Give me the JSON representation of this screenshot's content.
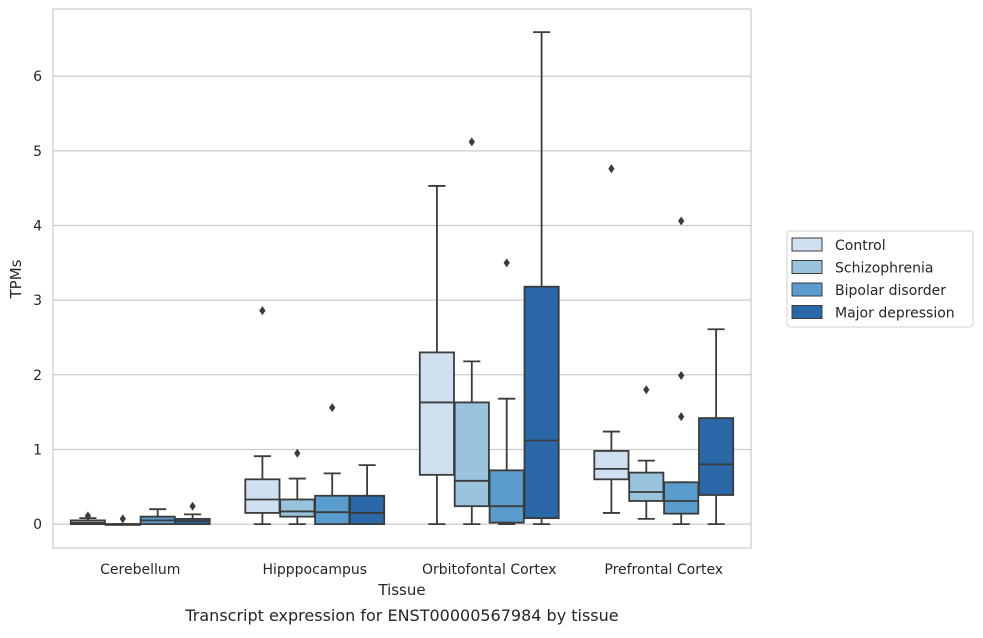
{
  "chart_data": {
    "type": "box",
    "title": "",
    "caption": "Transcript expression for ENST00000567984 by tissue",
    "xlabel": "Tissue",
    "ylabel": "TPMs",
    "ylim": [
      -0.32,
      6.9
    ],
    "yticks": [
      0,
      1,
      2,
      3,
      4,
      5,
      6
    ],
    "grid": "horizontal",
    "legend_position": "right",
    "categories": [
      "Cerebellum",
      "Hipppocampus",
      "Orbitofontal Cortex",
      "Prefrontal Cortex"
    ],
    "series": [
      {
        "name": "Control",
        "color": "#cfe0f0",
        "boxes": [
          {
            "whisker_low": 0.0,
            "q1": 0.0,
            "median": 0.02,
            "q3": 0.05,
            "whisker_high": 0.08,
            "outliers": [
              0.11
            ]
          },
          {
            "whisker_low": 0.0,
            "q1": 0.15,
            "median": 0.33,
            "q3": 0.6,
            "whisker_high": 0.91,
            "outliers": [
              2.86
            ]
          },
          {
            "whisker_low": 0.0,
            "q1": 0.66,
            "median": 1.63,
            "q3": 2.3,
            "whisker_high": 4.53,
            "outliers": []
          },
          {
            "whisker_low": 0.15,
            "q1": 0.6,
            "median": 0.74,
            "q3": 0.98,
            "whisker_high": 1.24,
            "outliers": [
              4.76
            ]
          }
        ]
      },
      {
        "name": "Schizophrenia",
        "color": "#9ac3de",
        "boxes": [
          {
            "whisker_low": 0.0,
            "q1": 0.0,
            "median": 0.0,
            "q3": 0.0,
            "whisker_high": 0.0,
            "outliers": [
              0.07
            ]
          },
          {
            "whisker_low": 0.0,
            "q1": 0.1,
            "median": 0.17,
            "q3": 0.33,
            "whisker_high": 0.61,
            "outliers": [
              0.95
            ]
          },
          {
            "whisker_low": 0.0,
            "q1": 0.24,
            "median": 0.58,
            "q3": 1.63,
            "whisker_high": 2.18,
            "outliers": [
              5.12
            ]
          },
          {
            "whisker_low": 0.07,
            "q1": 0.31,
            "median": 0.43,
            "q3": 0.69,
            "whisker_high": 0.85,
            "outliers": [
              1.8
            ]
          }
        ]
      },
      {
        "name": "Bipolar disorder",
        "color": "#5a9ccd",
        "boxes": [
          {
            "whisker_low": 0.0,
            "q1": 0.0,
            "median": 0.05,
            "q3": 0.1,
            "whisker_high": 0.2,
            "outliers": []
          },
          {
            "whisker_low": 0.0,
            "q1": 0.0,
            "median": 0.16,
            "q3": 0.38,
            "whisker_high": 0.68,
            "outliers": [
              1.56
            ]
          },
          {
            "whisker_low": 0.0,
            "q1": 0.02,
            "median": 0.24,
            "q3": 0.72,
            "whisker_high": 1.68,
            "outliers": [
              3.5
            ]
          },
          {
            "whisker_low": 0.0,
            "q1": 0.14,
            "median": 0.31,
            "q3": 0.56,
            "whisker_high": 0.56,
            "outliers": [
              1.44,
              1.99,
              4.06
            ]
          }
        ]
      },
      {
        "name": "Major depression",
        "color": "#2a68a8",
        "boxes": [
          {
            "whisker_low": 0.0,
            "q1": 0.0,
            "median": 0.04,
            "q3": 0.07,
            "whisker_high": 0.13,
            "outliers": [
              0.24
            ]
          },
          {
            "whisker_low": 0.0,
            "q1": 0.0,
            "median": 0.15,
            "q3": 0.38,
            "whisker_high": 0.79,
            "outliers": []
          },
          {
            "whisker_low": 0.0,
            "q1": 0.08,
            "median": 1.12,
            "q3": 3.18,
            "whisker_high": 6.59,
            "outliers": []
          },
          {
            "whisker_low": 0.0,
            "q1": 0.39,
            "median": 0.8,
            "q3": 1.42,
            "whisker_high": 2.61,
            "outliers": []
          }
        ]
      }
    ]
  }
}
